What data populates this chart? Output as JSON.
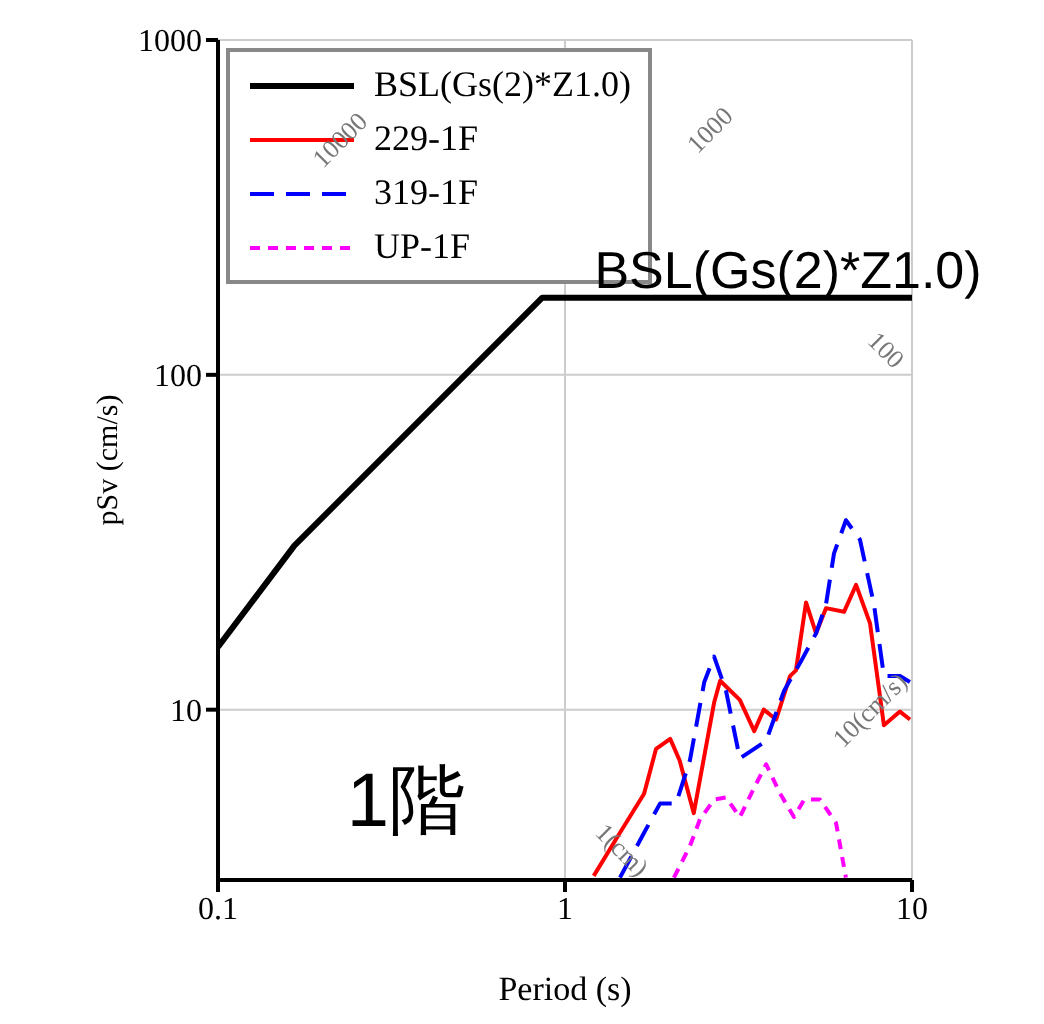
{
  "chart_data": {
    "type": "line",
    "xlabel": "Period (s)",
    "ylabel": "pSv (cm/s)",
    "log": "xy",
    "grid": true,
    "legend": "top left",
    "marker": "none",
    "xlim": [
      0.1,
      10
    ],
    "xticks": [
      0.1,
      1,
      10
    ],
    "ylim": [
      3.1,
      1000
    ],
    "yticks": [
      10,
      100,
      1000
    ],
    "series": [
      {
        "name": "BSL(Gs(2)*Z1.0)",
        "color": "#000000",
        "line_style": "solid",
        "x": [
          0.1,
          0.166,
          0.86,
          10
        ],
        "values": [
          15.4,
          30.9,
          170,
          170
        ]
      },
      {
        "name": "229-1F",
        "color": "#ff0000",
        "line_style": "solid",
        "x": [
          1.21,
          1.44,
          1.69,
          1.83,
          2.01,
          2.14,
          2.35,
          2.69,
          2.8,
          3.19,
          3.51,
          3.74,
          4.06,
          4.45,
          4.63,
          4.95,
          5.29,
          5.65,
          6.37,
          6.9,
          7.57,
          8.3,
          9.23,
          9.87
        ],
        "values": [
          3.19,
          4.29,
          5.61,
          7.64,
          8.18,
          7.05,
          4.91,
          10.5,
          12.2,
          10.7,
          8.63,
          10,
          9.35,
          12.6,
          13.1,
          20.9,
          16.9,
          20.1,
          19.6,
          23.6,
          18.1,
          8.98,
          9.87,
          9.35
        ]
      },
      {
        "name": "319-1F",
        "color": "#0000ff",
        "line_style": "dashed",
        "x": [
          1.44,
          1.69,
          1.88,
          2.09,
          2.29,
          2.52,
          2.69,
          2.91,
          3.19,
          3.51,
          3.8,
          4.28,
          4.76,
          5.29,
          5.65,
          5.96,
          6.45,
          7.08,
          7.77,
          8.3,
          9.23,
          9.87
        ],
        "values": [
          3.15,
          4.29,
          5.25,
          5.25,
          7.05,
          12.1,
          14.4,
          11.4,
          7.15,
          7.64,
          8.07,
          11.4,
          13.8,
          16.9,
          20.6,
          29.3,
          36.8,
          32.2,
          20.6,
          12.6,
          12.6,
          12.1
        ]
      },
      {
        "name": "UP-1F",
        "color": "#ff00ff",
        "line_style": "dotted",
        "x": [
          2.06,
          2.29,
          2.45,
          2.69,
          2.91,
          3.19,
          3.51,
          3.8,
          4.17,
          4.57,
          4.89,
          5.43,
          6.04,
          6.45
        ],
        "values": [
          3.15,
          3.91,
          4.71,
          5.39,
          5.47,
          4.78,
          5.85,
          6.87,
          5.61,
          4.78,
          5.39,
          5.39,
          4.59,
          3.15
        ]
      }
    ],
    "annotations": [
      "BSL(Gs(2)*Z1.0)",
      "1階",
      "10000",
      "1000",
      "100",
      "1(cm)",
      "10(cm/s)"
    ]
  }
}
